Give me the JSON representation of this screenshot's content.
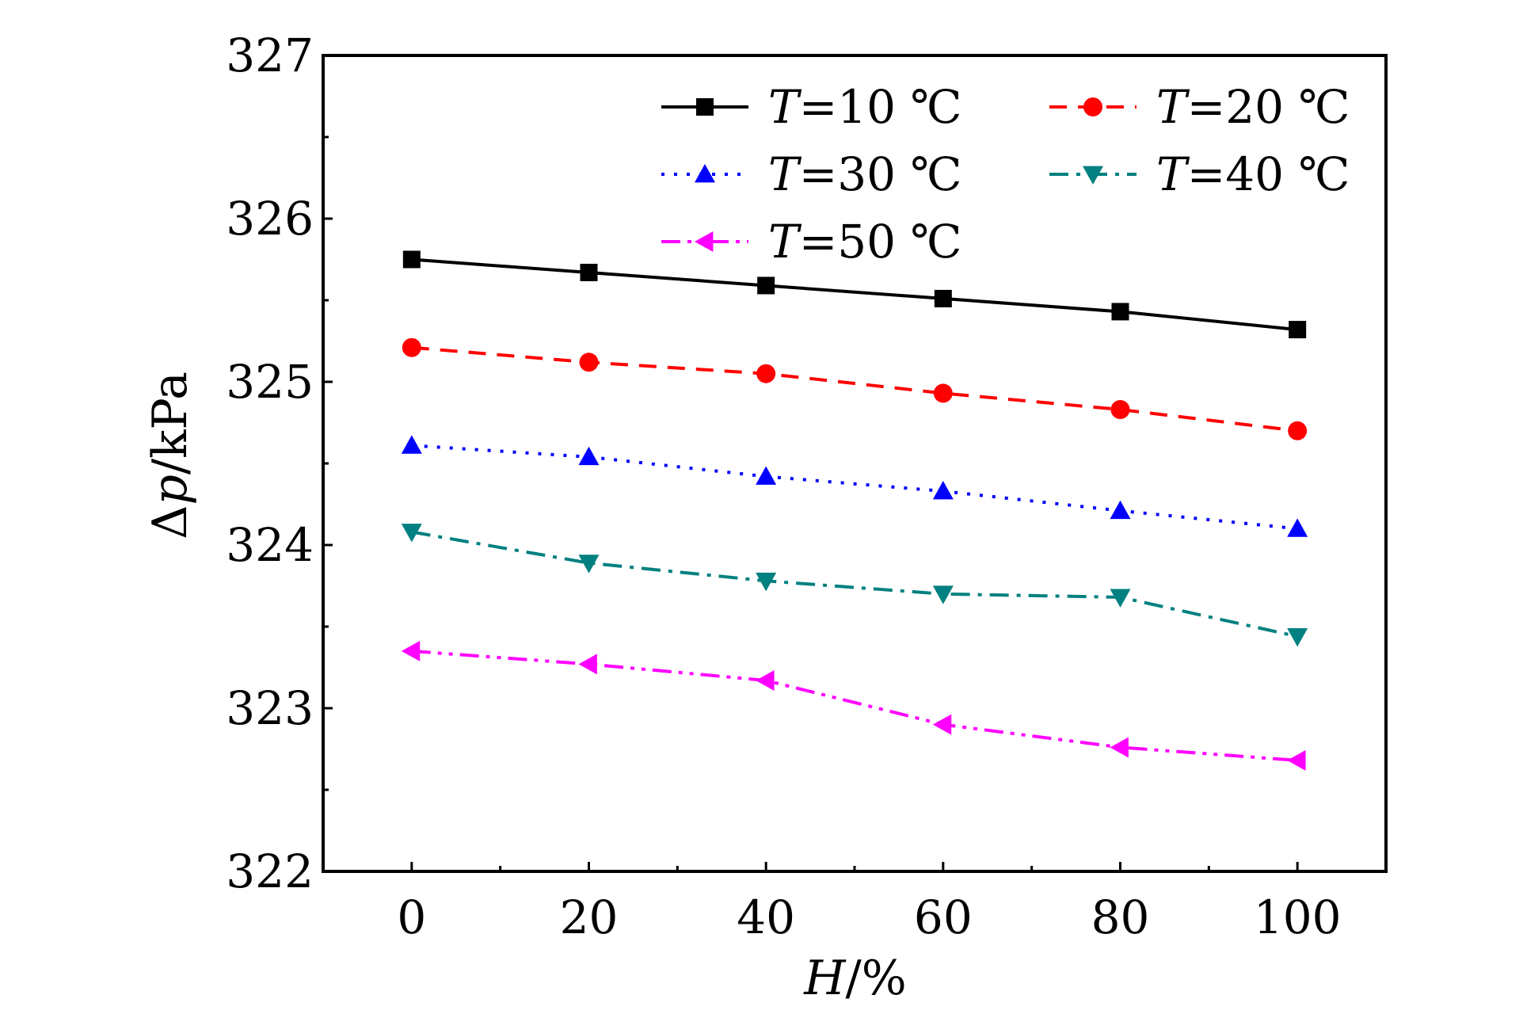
{
  "chart_data": {
    "type": "line",
    "xlabel": {
      "var": "H",
      "unit": "/%"
    },
    "ylabel": {
      "prefix": "Δ",
      "var": "p",
      "unit": "/kPa"
    },
    "xlim": [
      -10,
      110
    ],
    "ylim": [
      322,
      327
    ],
    "x_ticks": [
      0,
      20,
      40,
      60,
      80,
      100
    ],
    "y_ticks": [
      322,
      323,
      324,
      325,
      326,
      327
    ],
    "x": [
      0,
      20,
      40,
      60,
      80,
      100
    ],
    "series": [
      {
        "name": "T=10 ℃",
        "label_var": "T",
        "label_rest": "=10 ℃",
        "color": "#000000",
        "marker": "square",
        "dash": "solid",
        "values": [
          325.75,
          325.67,
          325.59,
          325.51,
          325.43,
          325.32
        ]
      },
      {
        "name": "T=20 ℃",
        "label_var": "T",
        "label_rest": "=20 ℃",
        "color": "#ff0000",
        "marker": "circle",
        "dash": "dash",
        "values": [
          325.21,
          325.12,
          325.05,
          324.93,
          324.83,
          324.7
        ]
      },
      {
        "name": "T=30 ℃",
        "label_var": "T",
        "label_rest": "=30 ℃",
        "color": "#0000ff",
        "marker": "triangle-up",
        "dash": "dot",
        "values": [
          324.61,
          324.54,
          324.42,
          324.33,
          324.21,
          324.1
        ]
      },
      {
        "name": "T=40 ℃",
        "label_var": "T",
        "label_rest": "=40 ℃",
        "color": "#008080",
        "marker": "triangle-down",
        "dash": "dashdot",
        "values": [
          324.08,
          323.89,
          323.78,
          323.7,
          323.68,
          323.44
        ]
      },
      {
        "name": "T=50 ℃",
        "label_var": "T",
        "label_rest": "=50 ℃",
        "color": "#ff00ff",
        "marker": "triangle-left",
        "dash": "dashdotdot",
        "values": [
          323.35,
          323.27,
          323.17,
          322.9,
          322.76,
          322.68
        ]
      }
    ],
    "legend_position": "top-right",
    "grid": false
  }
}
